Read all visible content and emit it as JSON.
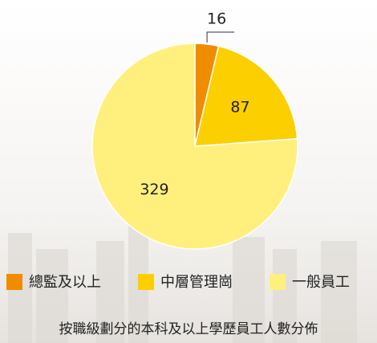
{
  "chart_data": {
    "type": "pie",
    "title": "按職級劃分的本科及以上學歷員工人數分佈",
    "categories": [
      "總監及以上",
      "中層管理崗",
      "一般員工"
    ],
    "values": [
      16,
      87,
      329
    ],
    "colors": [
      "#f08c00",
      "#fccf00",
      "#fff07e"
    ],
    "legend": "bottom"
  }
}
